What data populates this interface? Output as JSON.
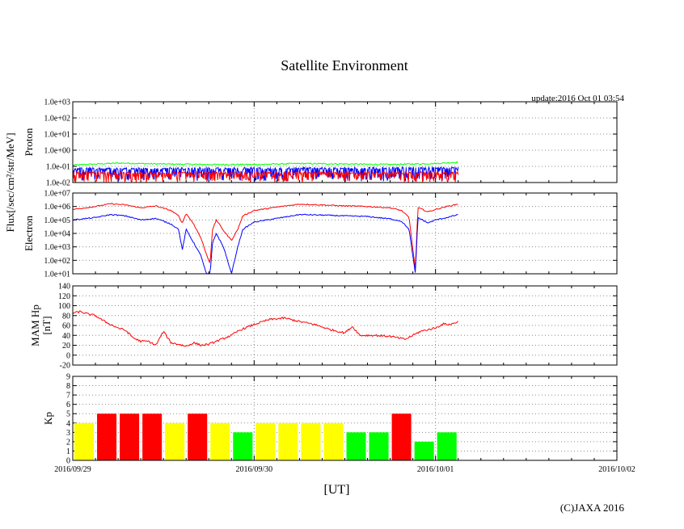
{
  "title": "Satellite Environment",
  "update": "update:2016 Oct 01 03:54",
  "copyright": "(C)JAXA 2016",
  "flux_ylabel": "Flux[/sec/cm²/str/MeV]",
  "colors": {
    "red": "#ff0000",
    "blue": "#0000ff",
    "green": "#00ff00",
    "yellow": "#ffff00"
  },
  "chart_data": [
    {
      "type": "line",
      "ylabel": "Proton",
      "yscale": "log",
      "ylim": [
        0.01,
        1000
      ],
      "yticks": [
        "1.0e+03",
        "1.0e+02",
        "1.0e+01",
        "1.0e+00",
        "1.0e-01",
        "1.0e-02"
      ],
      "xlim": [
        "2016/09/29 00:00",
        "2016/10/02 00:00"
      ],
      "series": [
        {
          "color": "green",
          "x": [
            "2016/09/29 00:00",
            "2016/09/29 06:00",
            "2016/09/29 12:00",
            "2016/09/29 18:00",
            "2016/09/30 00:00",
            "2016/09/30 06:00",
            "2016/09/30 12:00",
            "2016/09/30 18:00",
            "2016/10/01 00:00",
            "2016/10/01 03:00"
          ],
          "y": [
            0.12,
            0.16,
            0.14,
            0.13,
            0.13,
            0.15,
            0.14,
            0.13,
            0.15,
            0.18
          ]
        },
        {
          "color": "blue",
          "x": [
            "2016/09/29 00:00",
            "2016/10/01 03:00"
          ],
          "y": [
            0.07,
            0.08
          ],
          "noise_min": 0.012
        },
        {
          "color": "red",
          "x": [
            "2016/09/29 00:00",
            "2016/10/01 03:00"
          ],
          "y": [
            0.04,
            0.04
          ],
          "noise_min": 0.01
        }
      ]
    },
    {
      "type": "line",
      "ylabel": "Electron",
      "yscale": "log",
      "ylim": [
        10,
        10000000
      ],
      "yticks": [
        "1.0e+07",
        "1.0e+06",
        "1.0e+05",
        "1.0e+04",
        "1.0e+03",
        "1.0e+02",
        "1.0e+01"
      ],
      "xlim": [
        "2016/09/29 00:00",
        "2016/10/02 00:00"
      ],
      "series": [
        {
          "color": "red",
          "x": [
            "2016/09/29 00:00",
            "2016/09/29 03:00",
            "2016/09/29 05:00",
            "2016/09/29 07:00",
            "2016/09/29 09:00",
            "2016/09/29 11:00",
            "2016/09/29 13:00",
            "2016/09/29 14:00",
            "2016/09/29 14:30",
            "2016/09/29 15:00",
            "2016/09/29 16:00",
            "2016/09/29 17:00",
            "2016/09/29 17:40",
            "2016/09/29 18:10",
            "2016/09/29 18:30",
            "2016/09/29 19:00",
            "2016/09/29 20:00",
            "2016/09/29 21:00",
            "2016/09/29 21:50",
            "2016/09/29 22:30",
            "2016/09/30 00:00",
            "2016/09/30 03:00",
            "2016/09/30 06:00",
            "2016/09/30 09:00",
            "2016/09/30 12:00",
            "2016/09/30 15:00",
            "2016/09/30 18:00",
            "2016/09/30 19:30",
            "2016/09/30 20:30",
            "2016/09/30 21:20",
            "2016/09/30 21:40",
            "2016/09/30 22:00",
            "2016/09/30 23:00",
            "2016/10/01 00:00",
            "2016/10/01 01:30",
            "2016/10/01 03:00"
          ],
          "y": [
            600000,
            1000000,
            1600000,
            1300000,
            800000,
            1100000,
            500000,
            200000,
            60000,
            300000,
            50000,
            4000,
            300,
            60,
            20000,
            100000,
            15000,
            3000,
            20000,
            200000,
            500000,
            900000,
            1500000,
            1300000,
            1100000,
            1000000,
            800000,
            500000,
            150000,
            20,
            800000,
            700000,
            400000,
            600000,
            1000000,
            1500000
          ]
        },
        {
          "color": "blue",
          "x": [
            "2016/09/29 00:00",
            "2016/09/29 03:00",
            "2016/09/29 05:00",
            "2016/09/29 07:00",
            "2016/09/29 09:00",
            "2016/09/29 11:00",
            "2016/09/29 13:00",
            "2016/09/29 14:00",
            "2016/09/29 14:30",
            "2016/09/29 15:00",
            "2016/09/29 16:00",
            "2016/09/29 17:00",
            "2016/09/29 17:40",
            "2016/09/29 18:10",
            "2016/09/29 18:30",
            "2016/09/29 19:00",
            "2016/09/29 20:00",
            "2016/09/29 21:00",
            "2016/09/29 21:50",
            "2016/09/29 22:30",
            "2016/09/30 00:00",
            "2016/09/30 03:00",
            "2016/09/30 06:00",
            "2016/09/30 09:00",
            "2016/09/30 12:00",
            "2016/09/30 15:00",
            "2016/09/30 18:00",
            "2016/09/30 19:30",
            "2016/09/30 20:30",
            "2016/09/30 21:20",
            "2016/09/30 21:40",
            "2016/09/30 22:00",
            "2016/09/30 23:00",
            "2016/10/01 00:00",
            "2016/10/01 01:30",
            "2016/10/01 03:00"
          ],
          "y": [
            100000,
            150000,
            250000,
            200000,
            100000,
            130000,
            50000,
            20000,
            600,
            20000,
            2000,
            200,
            10,
            10,
            2000,
            10000,
            800,
            10,
            1000,
            20000,
            70000,
            130000,
            250000,
            230000,
            200000,
            180000,
            120000,
            80000,
            20000,
            10,
            150000,
            120000,
            60000,
            100000,
            150000,
            250000
          ]
        }
      ]
    },
    {
      "type": "line",
      "ylabel": "MAM Hp\n[nT]",
      "ylim": [
        -20,
        140
      ],
      "yticks": [
        "140",
        "120",
        "100",
        "80",
        "60",
        "40",
        "20",
        "0",
        "-20"
      ],
      "xlim": [
        "2016/09/29 00:00",
        "2016/10/02 00:00"
      ],
      "series": [
        {
          "color": "red",
          "x": [
            "2016/09/29 00:00",
            "2016/09/29 01:00",
            "2016/09/29 02:00",
            "2016/09/29 03:00",
            "2016/09/29 04:00",
            "2016/09/29 05:00",
            "2016/09/29 06:00",
            "2016/09/29 07:00",
            "2016/09/29 08:00",
            "2016/09/29 09:00",
            "2016/09/29 10:00",
            "2016/09/29 11:00",
            "2016/09/29 12:00",
            "2016/09/29 13:00",
            "2016/09/29 14:00",
            "2016/09/29 15:00",
            "2016/09/29 16:00",
            "2016/09/29 17:00",
            "2016/09/29 18:00",
            "2016/09/29 19:00",
            "2016/09/29 20:00",
            "2016/09/29 21:00",
            "2016/09/29 22:00",
            "2016/09/30 00:00",
            "2016/09/30 02:00",
            "2016/09/30 04:00",
            "2016/09/30 06:00",
            "2016/09/30 08:00",
            "2016/09/30 10:00",
            "2016/09/30 12:00",
            "2016/09/30 13:00",
            "2016/09/30 14:00",
            "2016/09/30 16:00",
            "2016/09/30 18:00",
            "2016/09/30 20:00",
            "2016/09/30 22:00",
            "2016/10/01 00:00",
            "2016/10/01 01:00",
            "2016/10/01 02:00",
            "2016/10/01 03:00"
          ],
          "y": [
            85,
            88,
            83,
            80,
            70,
            62,
            55,
            50,
            35,
            28,
            28,
            20,
            48,
            25,
            22,
            18,
            25,
            20,
            22,
            28,
            34,
            40,
            50,
            62,
            72,
            75,
            68,
            62,
            52,
            45,
            58,
            40,
            40,
            38,
            32,
            48,
            55,
            63,
            62,
            68
          ]
        }
      ]
    },
    {
      "type": "bar",
      "ylabel": "Kp",
      "ylim": [
        0,
        9
      ],
      "yticks": [
        "9",
        "8",
        "7",
        "6",
        "5",
        "4",
        "3",
        "2",
        "1",
        "0"
      ],
      "xlim": [
        "2016/09/29 00:00",
        "2016/10/02 00:00"
      ],
      "xticks": [
        "2016/09/29",
        "2016/09/30",
        "2016/10/01",
        "2016/10/02"
      ],
      "xlabel": "[UT]",
      "interval_hours": 3,
      "values": [
        4,
        5,
        5,
        5,
        4,
        5,
        4,
        3,
        4,
        4,
        4,
        4,
        3,
        3,
        5,
        2,
        3
      ],
      "colors": [
        "yellow",
        "red",
        "red",
        "red",
        "yellow",
        "red",
        "yellow",
        "green",
        "yellow",
        "yellow",
        "yellow",
        "yellow",
        "green",
        "green",
        "red",
        "green",
        "green"
      ]
    }
  ]
}
